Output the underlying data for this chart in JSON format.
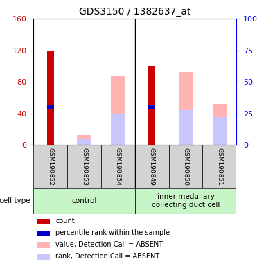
{
  "title": "GDS3150 / 1382637_at",
  "samples": [
    "GSM190852",
    "GSM190853",
    "GSM190854",
    "GSM190849",
    "GSM190850",
    "GSM190851"
  ],
  "groups": [
    "control",
    "control",
    "control",
    "inner medullary\ncollecting duct cell",
    "inner medullary\ncollecting duct cell",
    "inner medullary\ncollecting duct cell"
  ],
  "group_labels": [
    "control",
    "inner medullary\ncollecting duct cell"
  ],
  "group_colors": [
    "#b3f0b3",
    "#b3f0b3"
  ],
  "ylim_left": [
    0,
    160
  ],
  "ylim_right": [
    0,
    100
  ],
  "yticks_left": [
    0,
    40,
    80,
    120,
    160
  ],
  "yticks_right": [
    0,
    25,
    50,
    75,
    100
  ],
  "yticklabels_right": [
    "0",
    "25",
    "50",
    "75",
    "100%"
  ],
  "count_values": [
    120,
    0,
    0,
    100,
    0,
    0
  ],
  "percentile_values": [
    48,
    0,
    0,
    48,
    0,
    0
  ],
  "pink_value_heights": [
    0,
    13,
    88,
    0,
    92,
    52
  ],
  "lavender_rank_heights": [
    0,
    8,
    40,
    0,
    44,
    35
  ],
  "bar_width": 0.35,
  "red_color": "#cc0000",
  "blue_color": "#0000cc",
  "pink_color": "#ffb3b3",
  "lavender_color": "#c8c8ff",
  "grid_color": "#000000",
  "bg_color": "#ffffff",
  "left_tick_color": "#cc0000",
  "right_tick_color": "#0000ff",
  "cell_type_label": "cell type",
  "group_bg_color": "#c8f5c8"
}
